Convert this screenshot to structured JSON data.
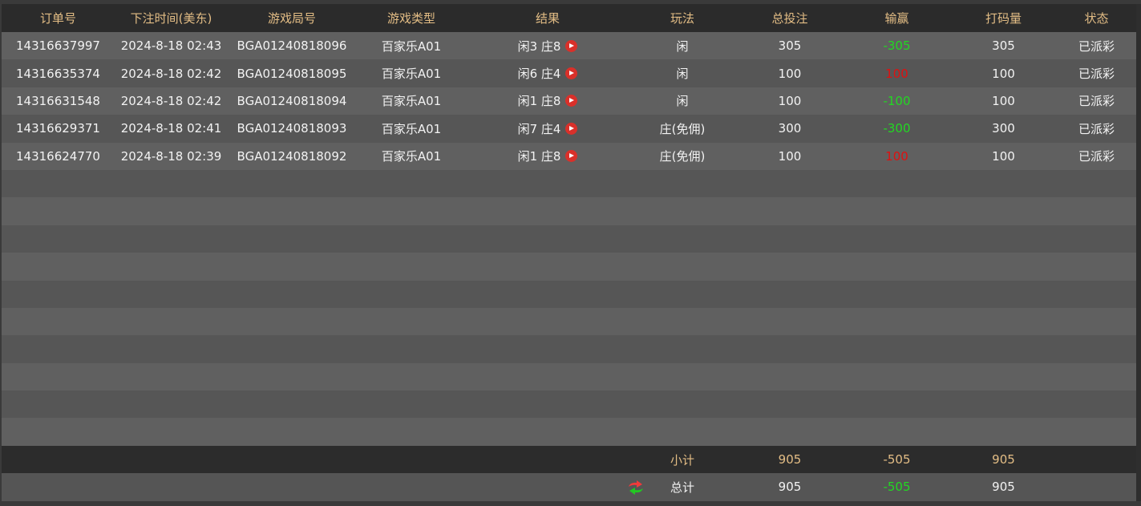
{
  "headers": [
    "订单号",
    "下注时间(美东)",
    "游戏局号",
    "游戏类型",
    "结果",
    "玩法",
    "总投注",
    "输赢",
    "打码量",
    "状态"
  ],
  "rows": [
    {
      "order": "14316637997",
      "time": "2024-8-18 02:43",
      "round": "BGA01240818096",
      "game": "百家乐A01",
      "result": "闲3 庄8",
      "bet_type": "闲",
      "total": "305",
      "winloss": "-305",
      "valid": "305",
      "status": "已派彩"
    },
    {
      "order": "14316635374",
      "time": "2024-8-18 02:42",
      "round": "BGA01240818095",
      "game": "百家乐A01",
      "result": "闲6 庄4",
      "bet_type": "闲",
      "total": "100",
      "winloss": "100",
      "valid": "100",
      "status": "已派彩"
    },
    {
      "order": "14316631548",
      "time": "2024-8-18 02:42",
      "round": "BGA01240818094",
      "game": "百家乐A01",
      "result": "闲1 庄8",
      "bet_type": "闲",
      "total": "100",
      "winloss": "-100",
      "valid": "100",
      "status": "已派彩"
    },
    {
      "order": "14316629371",
      "time": "2024-8-18 02:41",
      "round": "BGA01240818093",
      "game": "百家乐A01",
      "result": "闲7 庄4",
      "bet_type": "庄(免佣)",
      "total": "300",
      "winloss": "-300",
      "valid": "300",
      "status": "已派彩"
    },
    {
      "order": "14316624770",
      "time": "2024-8-18 02:39",
      "round": "BGA01240818092",
      "game": "百家乐A01",
      "result": "闲1 庄8",
      "bet_type": "庄(免佣)",
      "total": "100",
      "winloss": "100",
      "valid": "100",
      "status": "已派彩"
    }
  ],
  "subtotal": {
    "label": "小计",
    "total": "905",
    "winloss": "-505",
    "valid": "905"
  },
  "grand_total": {
    "label": "总计",
    "total": "905",
    "winloss": "-505",
    "valid": "905"
  },
  "colors": {
    "header_text": "#e3bd85",
    "win": "#22d822",
    "lose": "#e01010",
    "play_icon": "#d9302a"
  },
  "icons": {
    "result_play": "play-icon",
    "refresh": "refresh-icon"
  }
}
